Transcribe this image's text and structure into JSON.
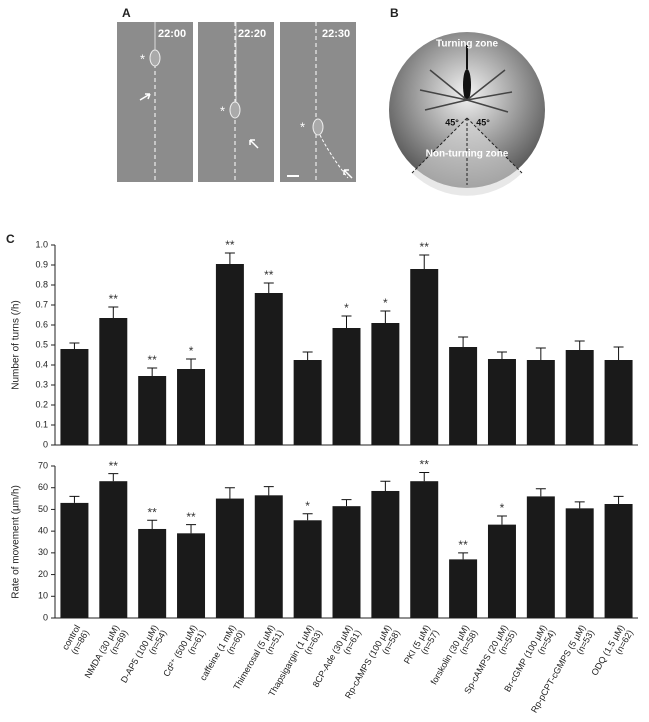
{
  "figure": {
    "panel_labels": [
      "A",
      "B",
      "C"
    ],
    "timestamps": [
      "22:00",
      "22:20",
      "22:30"
    ],
    "cell_marker": "*",
    "diagram": {
      "turning_zone": "Turning zone",
      "non_turning_zone": "Non-turning zone",
      "angles": [
        "45°",
        "45°"
      ]
    }
  },
  "chart_data": [
    {
      "type": "bar",
      "y_label": "Number of turns (/h)",
      "values": [
        0.48,
        0.635,
        0.345,
        0.38,
        0.905,
        0.76,
        0.425,
        0.585,
        0.61,
        0.88,
        0.49,
        0.43,
        0.425,
        0.475,
        0.425
      ],
      "errors": [
        0.03,
        0.055,
        0.04,
        0.05,
        0.055,
        0.05,
        0.04,
        0.06,
        0.06,
        0.07,
        0.05,
        0.035,
        0.06,
        0.045,
        0.065
      ],
      "significance": [
        null,
        "**",
        "**",
        "*",
        "**",
        "**",
        null,
        "*",
        "*",
        "**",
        null,
        null,
        null,
        null,
        null
      ],
      "color": "#1a1a1a",
      "ylim": [
        0,
        1
      ],
      "yticks": [
        0,
        0.1,
        0.2,
        0.3,
        0.4,
        0.5,
        0.6,
        0.7,
        0.8,
        0.9,
        {
          "value": 1,
          "label": "1.0"
        }
      ]
    },
    {
      "type": "bar",
      "y_label": "Rate of movement (µm/h)",
      "categories": [
        "control",
        "NMDA (30 µM)",
        "D-AP5 (100 µM)",
        "Cd²⁺ (500 µM)",
        "caffeine (1 mM)",
        "Thimerosal (5 µM)",
        "Thapsigargin (1 µM)",
        "8CP-Ade (30 µM)",
        "Rp-cAMPS (100 µM)",
        "PKI (5 µM)",
        "forskolin (30 µM)",
        "Sp-cAMPS (20 µM)",
        "Br-cGMP (100 µM)",
        "Rp-pCPT-cGMPS (5 µM)",
        "ODQ (1.5 µM)"
      ],
      "sample_sizes": [
        "(n=86)",
        "(n=69)",
        "(n=54)",
        "(n=61)",
        "(n=60)",
        "(n=51)",
        "(n=63)",
        "(n=61)",
        "(n=58)",
        "(n=57)",
        "(n=58)",
        "(n=55)",
        "(n=54)",
        "(n=53)",
        "(n=62)"
      ],
      "values": [
        53,
        63,
        41,
        39,
        55,
        56.5,
        45,
        51.5,
        58.5,
        63,
        27,
        43,
        56,
        50.5,
        52.5
      ],
      "errors": [
        3,
        3.5,
        4,
        4,
        5,
        4,
        3,
        3,
        4.5,
        4,
        3,
        4,
        3.5,
        3,
        3.5
      ],
      "significance": [
        null,
        "**",
        "**",
        "**",
        null,
        null,
        "*",
        null,
        null,
        "**",
        "**",
        "*",
        null,
        null,
        null
      ],
      "color": "#1a1a1a",
      "ylim": [
        0,
        70
      ],
      "yticks": [
        0,
        10,
        20,
        30,
        40,
        50,
        60,
        70
      ]
    }
  ]
}
